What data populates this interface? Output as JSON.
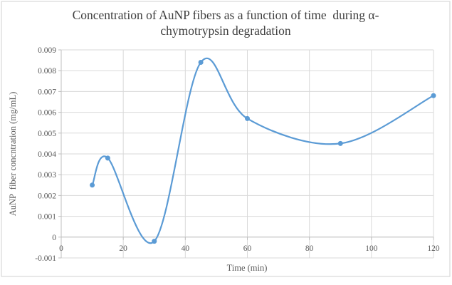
{
  "chart_data": {
    "type": "scatter",
    "line_style": "smooth_line_with_markers",
    "title_line1": "Concentration of AuNP fibers as a function of time  during α-",
    "title_line2": "chymotrypsin degradation",
    "xlabel": "Time (min)",
    "ylabel": "AuNP  fiber concntration (mg/mL)",
    "x": [
      10,
      15,
      30,
      45,
      60,
      90,
      120
    ],
    "y": [
      0.0025,
      0.0038,
      -0.0002,
      0.0084,
      0.0057,
      0.0045,
      0.0068
    ],
    "xlim": [
      0,
      120
    ],
    "ylim": [
      -0.001,
      0.009
    ],
    "x_ticks": [
      {
        "value": 0,
        "label": "0"
      },
      {
        "value": 20,
        "label": "20"
      },
      {
        "value": 40,
        "label": "40"
      },
      {
        "value": 60,
        "label": "60"
      },
      {
        "value": 80,
        "label": "80"
      },
      {
        "value": 100,
        "label": "100"
      },
      {
        "value": 120,
        "label": "120"
      }
    ],
    "y_ticks": [
      {
        "value": 0.009,
        "label": "0.009"
      },
      {
        "value": 0.008,
        "label": "0.008"
      },
      {
        "value": 0.007,
        "label": "0.007"
      },
      {
        "value": 0.006,
        "label": "0.006"
      },
      {
        "value": 0.005,
        "label": "0.005"
      },
      {
        "value": 0.004,
        "label": "0.004"
      },
      {
        "value": 0.003,
        "label": "0.003"
      },
      {
        "value": 0.002,
        "label": "0.002"
      },
      {
        "value": 0.001,
        "label": "0.001"
      },
      {
        "value": 0,
        "label": "0"
      },
      {
        "value": -0.001,
        "label": "-0.001"
      }
    ],
    "grid": true,
    "legend": "none",
    "colors": {
      "series": "#5B9BD5",
      "gridline": "#D9D9D9",
      "axis_line": "#BFBFBF",
      "tick_text": "#595959",
      "title_text": "#404040",
      "frame_border": "#D9D9D9",
      "background": "#FFFFFF"
    }
  }
}
